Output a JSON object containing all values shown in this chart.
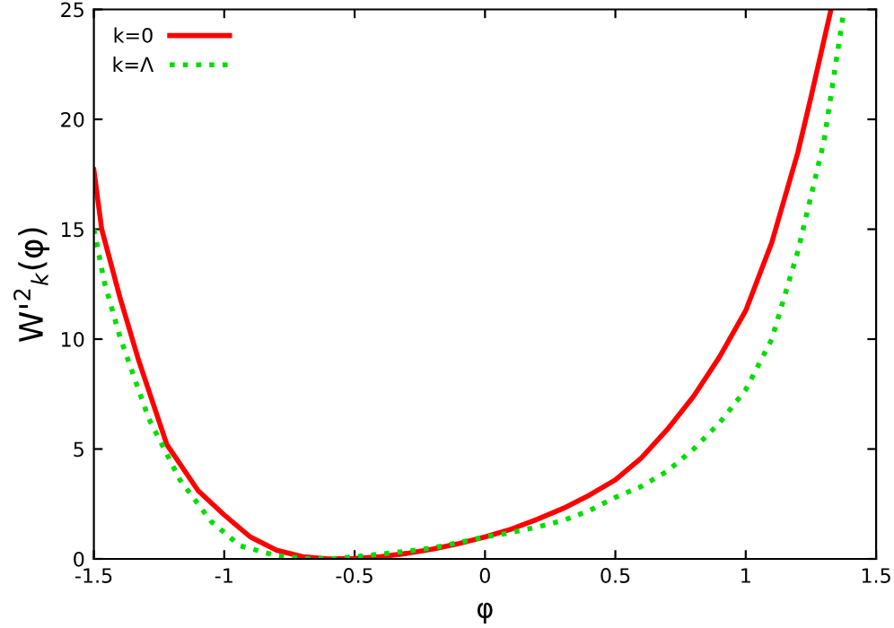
{
  "chart_data": {
    "type": "line",
    "xlabel": "φ",
    "ylabel": "W'$^{2}$$_{k}$(φ)",
    "xlim": [
      -1.5,
      1.5
    ],
    "xticks": [
      -1.5,
      -1,
      -0.5,
      0,
      0.5,
      1,
      1.5
    ],
    "ylim": [
      0,
      25
    ],
    "yticks": [
      0,
      5,
      10,
      15,
      20,
      25
    ],
    "grid": false,
    "legend": "top left",
    "series": [
      {
        "name": "k=0",
        "color": "#ff0000",
        "line_style": "solid",
        "x": [
          -1.5,
          -1.47,
          -1.4,
          -1.33,
          -1.22,
          -1.1,
          -1.0,
          -0.9,
          -0.8,
          -0.7,
          -0.6,
          -0.5,
          -0.4,
          -0.3,
          -0.2,
          -0.1,
          0,
          0.1,
          0.2,
          0.3,
          0.4,
          0.5,
          0.6,
          0.7,
          0.8,
          0.9,
          1.0,
          1.1,
          1.2,
          1.25,
          1.327
        ],
        "values": [
          17.7,
          15.0,
          11.9,
          9.1,
          5.2,
          3.1,
          2.0,
          1.0,
          0.4,
          0.1,
          0.0,
          0.02,
          0.1,
          0.25,
          0.45,
          0.7,
          1.0,
          1.35,
          1.8,
          2.3,
          2.9,
          3.6,
          4.6,
          5.9,
          7.4,
          9.2,
          11.3,
          14.4,
          18.5,
          21.0,
          25
        ]
      },
      {
        "name": "k=Λ",
        "color": "#00dd00",
        "line_style": "dotted",
        "x": [
          -1.5,
          -1.46,
          -1.4,
          -1.29,
          -1.17,
          -1.05,
          -0.94,
          -0.8,
          -0.7,
          -0.6,
          -0.5,
          -0.4,
          -0.3,
          -0.2,
          -0.1,
          0,
          0.1,
          0.2,
          0.3,
          0.4,
          0.5,
          0.6,
          0.7,
          0.8,
          0.9,
          1.0,
          1.1,
          1.2,
          1.3,
          1.377
        ],
        "values": [
          15.0,
          12.6,
          10.1,
          6.4,
          3.6,
          1.7,
          0.6,
          0.15,
          0.02,
          0.0,
          0.1,
          0.22,
          0.35,
          0.5,
          0.75,
          1.0,
          1.2,
          1.45,
          1.75,
          2.2,
          2.8,
          3.3,
          4.0,
          5.0,
          6.2,
          7.7,
          10.0,
          14.0,
          19.0,
          25
        ]
      }
    ]
  }
}
